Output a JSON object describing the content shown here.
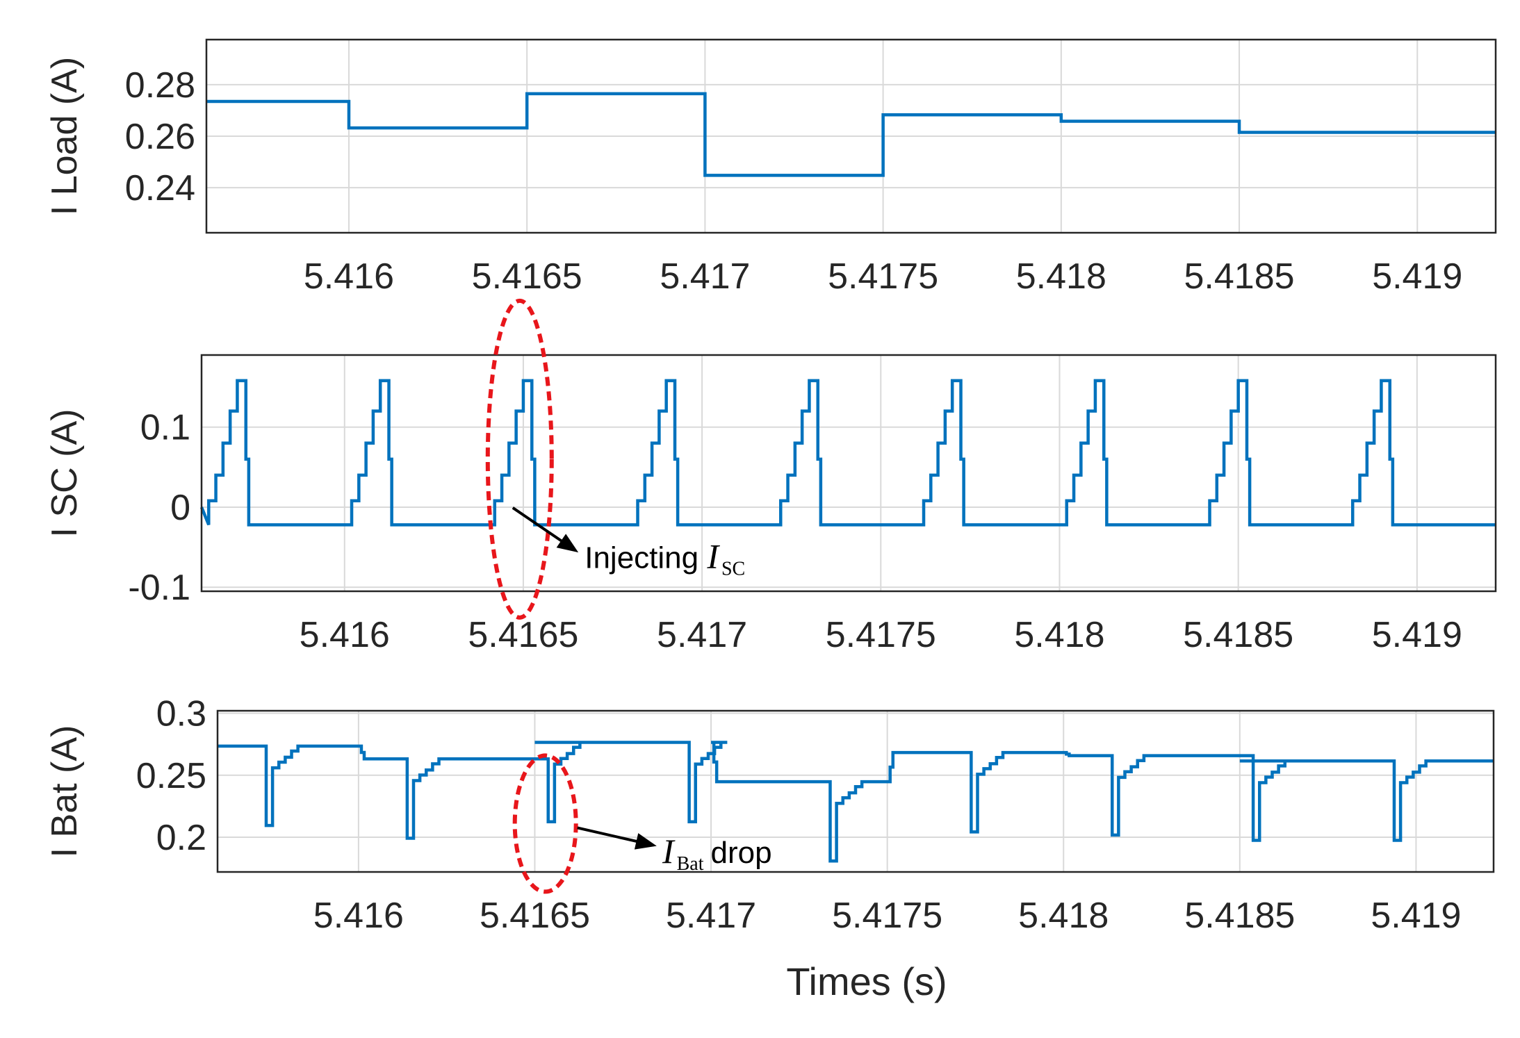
{
  "colors": {
    "trace": "#0072BD",
    "annotation_ellipse": "#e8161b",
    "annotation_arrow": "#000000"
  },
  "chart_data": [
    {
      "type": "line",
      "ylabel": "I Load (A)",
      "xlim": [
        5.4156,
        5.41922
      ],
      "ylim": [
        0.2225,
        0.2975
      ],
      "xticks": [
        5.416,
        5.4165,
        5.417,
        5.4175,
        5.418,
        5.4185,
        5.419
      ],
      "xtick_labels": [
        "5.416",
        "5.4165",
        "5.417",
        "5.4175",
        "5.418",
        "5.4185",
        "5.419"
      ],
      "yticks": [
        0.24,
        0.26,
        0.28
      ],
      "ytick_labels": [
        "0.24",
        "0.26",
        "0.28"
      ],
      "grid": true,
      "series": [
        {
          "x": [
            5.4156,
            5.416,
            5.416,
            5.4165,
            5.4165,
            5.417,
            5.417,
            5.4175,
            5.4175,
            5.418,
            5.418,
            5.4185,
            5.4185,
            5.41922
          ],
          "y": [
            0.2735,
            0.2735,
            0.2632,
            0.2632,
            0.2765,
            0.2765,
            0.2448,
            0.2448,
            0.2683,
            0.2683,
            0.2658,
            0.2658,
            0.2615,
            0.2615
          ]
        }
      ]
    },
    {
      "type": "line",
      "ylabel": "I SC (A)",
      "xlim": [
        5.4156,
        5.41922
      ],
      "ylim": [
        -0.105,
        0.19
      ],
      "xticks": [
        5.416,
        5.4165,
        5.417,
        5.4175,
        5.418,
        5.4185,
        5.419
      ],
      "xtick_labels": [
        "5.416",
        "5.4165",
        "5.417",
        "5.4175",
        "5.418",
        "5.4185",
        "5.419"
      ],
      "yticks": [
        -0.1,
        0,
        0.1
      ],
      "ytick_labels": [
        "-0.1",
        "0",
        "0.1"
      ],
      "grid": true,
      "pulse_starts": [
        5.41562,
        5.41602,
        5.41642,
        5.41682,
        5.41722,
        5.41762,
        5.41802,
        5.41842,
        5.41882
      ],
      "pulse_shape": {
        "dx": [
          0,
          2e-05,
          4e-05,
          6e-05,
          8e-05,
          0.000104
        ],
        "dy": [
          0.008,
          0.04,
          0.08,
          0.12,
          0.158,
          0.06
        ]
      },
      "baseline": -0.022,
      "annotations": [
        {
          "text": "Injecting ",
          "symbol": "I",
          "subscript": "SC",
          "target_x": 5.41649,
          "target_y": 0.06,
          "label_anchor_x": 5.41666,
          "label_anchor_y": -0.064
        }
      ]
    },
    {
      "type": "line",
      "ylabel": "I Bat (A)",
      "xlabel": "Times (s)",
      "xlim": [
        5.4156,
        5.41922
      ],
      "ylim": [
        0.172,
        0.302
      ],
      "xticks": [
        5.416,
        5.4165,
        5.417,
        5.4175,
        5.418,
        5.4185,
        5.419
      ],
      "xtick_labels": [
        "5.416",
        "5.4165",
        "5.417",
        "5.4175",
        "5.418",
        "5.4185",
        "5.419"
      ],
      "yticks": [
        0.2,
        0.25,
        0.3
      ],
      "ytick_labels": [
        "0.2",
        "0.25",
        "0.3"
      ],
      "grid": true,
      "dip_starts": [
        5.41562,
        5.41602,
        5.41642,
        5.41682,
        5.41722,
        5.41762,
        5.41802,
        5.41842,
        5.41882
      ],
      "dip_shape": {
        "dx": [
          0,
          2e-05,
          4e-05,
          6e-05,
          8e-05,
          0.000104
        ],
        "dy_from_level": [
          -0.002,
          -0.006,
          -0.01,
          -0.014,
          -0.0175,
          -0.064
        ]
      },
      "levels": [
        {
          "x0": 5.4156,
          "x1": 5.416,
          "y": 0.2735
        },
        {
          "x0": 5.416,
          "x1": 5.4165,
          "y": 0.2632
        },
        {
          "x0": 5.4165,
          "x1": 5.417,
          "y": 0.2765
        },
        {
          "x0": 5.417,
          "x1": 5.4175,
          "y": 0.2448
        },
        {
          "x0": 5.4175,
          "x1": 5.418,
          "y": 0.2683
        },
        {
          "x0": 5.418,
          "x1": 5.4185,
          "y": 0.2658
        },
        {
          "x0": 5.4185,
          "x1": 5.41922,
          "y": 0.2615
        }
      ],
      "annotations": [
        {
          "text": "drop",
          "symbol": "I",
          "subscript": "Bat",
          "target_x": 5.41653,
          "target_y": 0.211,
          "label_anchor_x": 5.41685,
          "label_anchor_y": 0.187
        }
      ]
    }
  ]
}
